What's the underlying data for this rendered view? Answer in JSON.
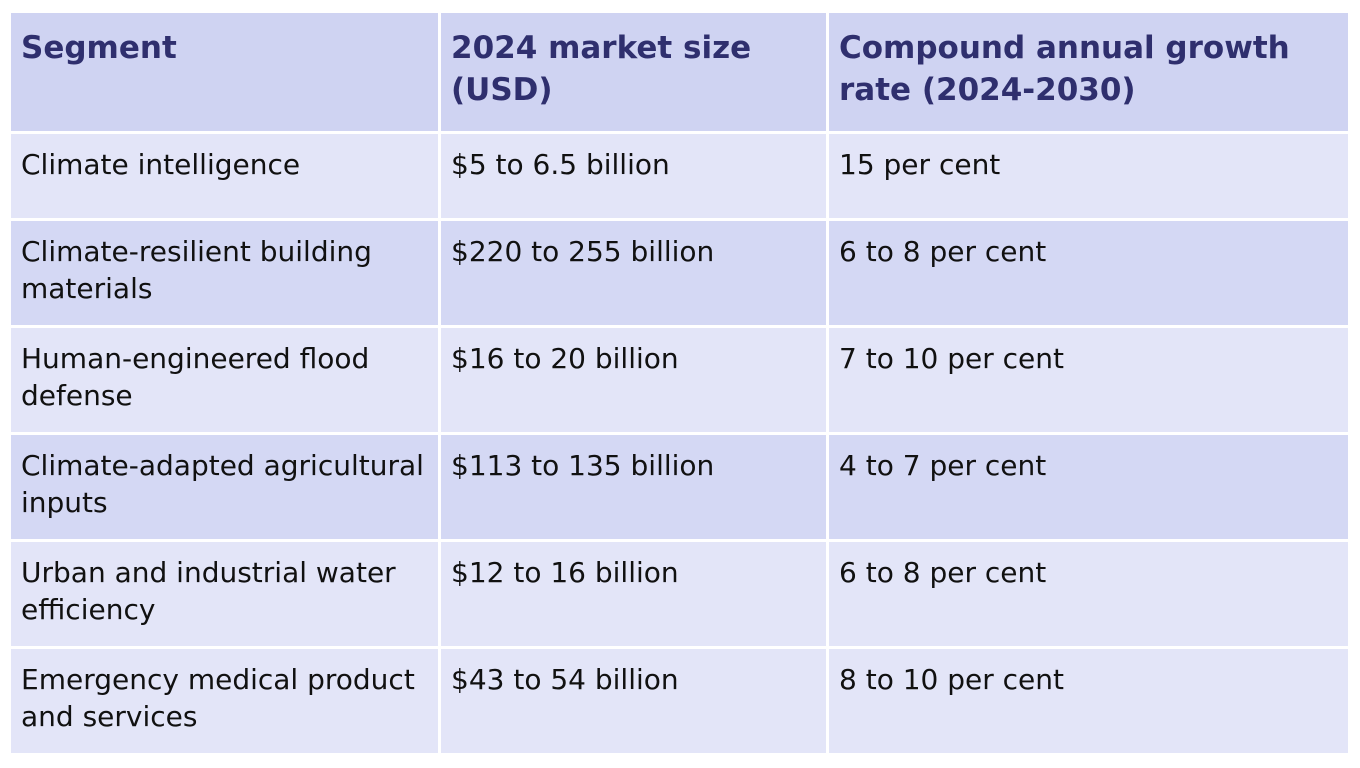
{
  "table": {
    "headers": [
      "Segment",
      "2024 market size (USD)",
      "Compound annual growth rate (2024-2030)"
    ],
    "rows": [
      [
        "Climate intelligence",
        "$5 to 6.5 billion",
        "15 per cent"
      ],
      [
        "Climate-resilient building materials",
        "$220 to 255 billion",
        "6 to 8 per cent"
      ],
      [
        "Human-engineered flood defense",
        "$16 to 20 billion",
        "7 to 10 per cent"
      ],
      [
        "Climate-adapted agricultural inputs",
        "$113 to 135 billion",
        "4 to 7 per cent"
      ],
      [
        "Urban and industrial water efficiency",
        "$12 to 16 billion",
        "6 to 8 per cent"
      ],
      [
        "Emergency medical product and services",
        "$43 to 54 billion",
        "8 to 10 per cent"
      ]
    ]
  },
  "colors": {
    "header_bg": "#cfd3f2",
    "header_text": "#2f2f6e",
    "row_light": "#e3e5f8",
    "row_dark": "#d4d8f4"
  }
}
